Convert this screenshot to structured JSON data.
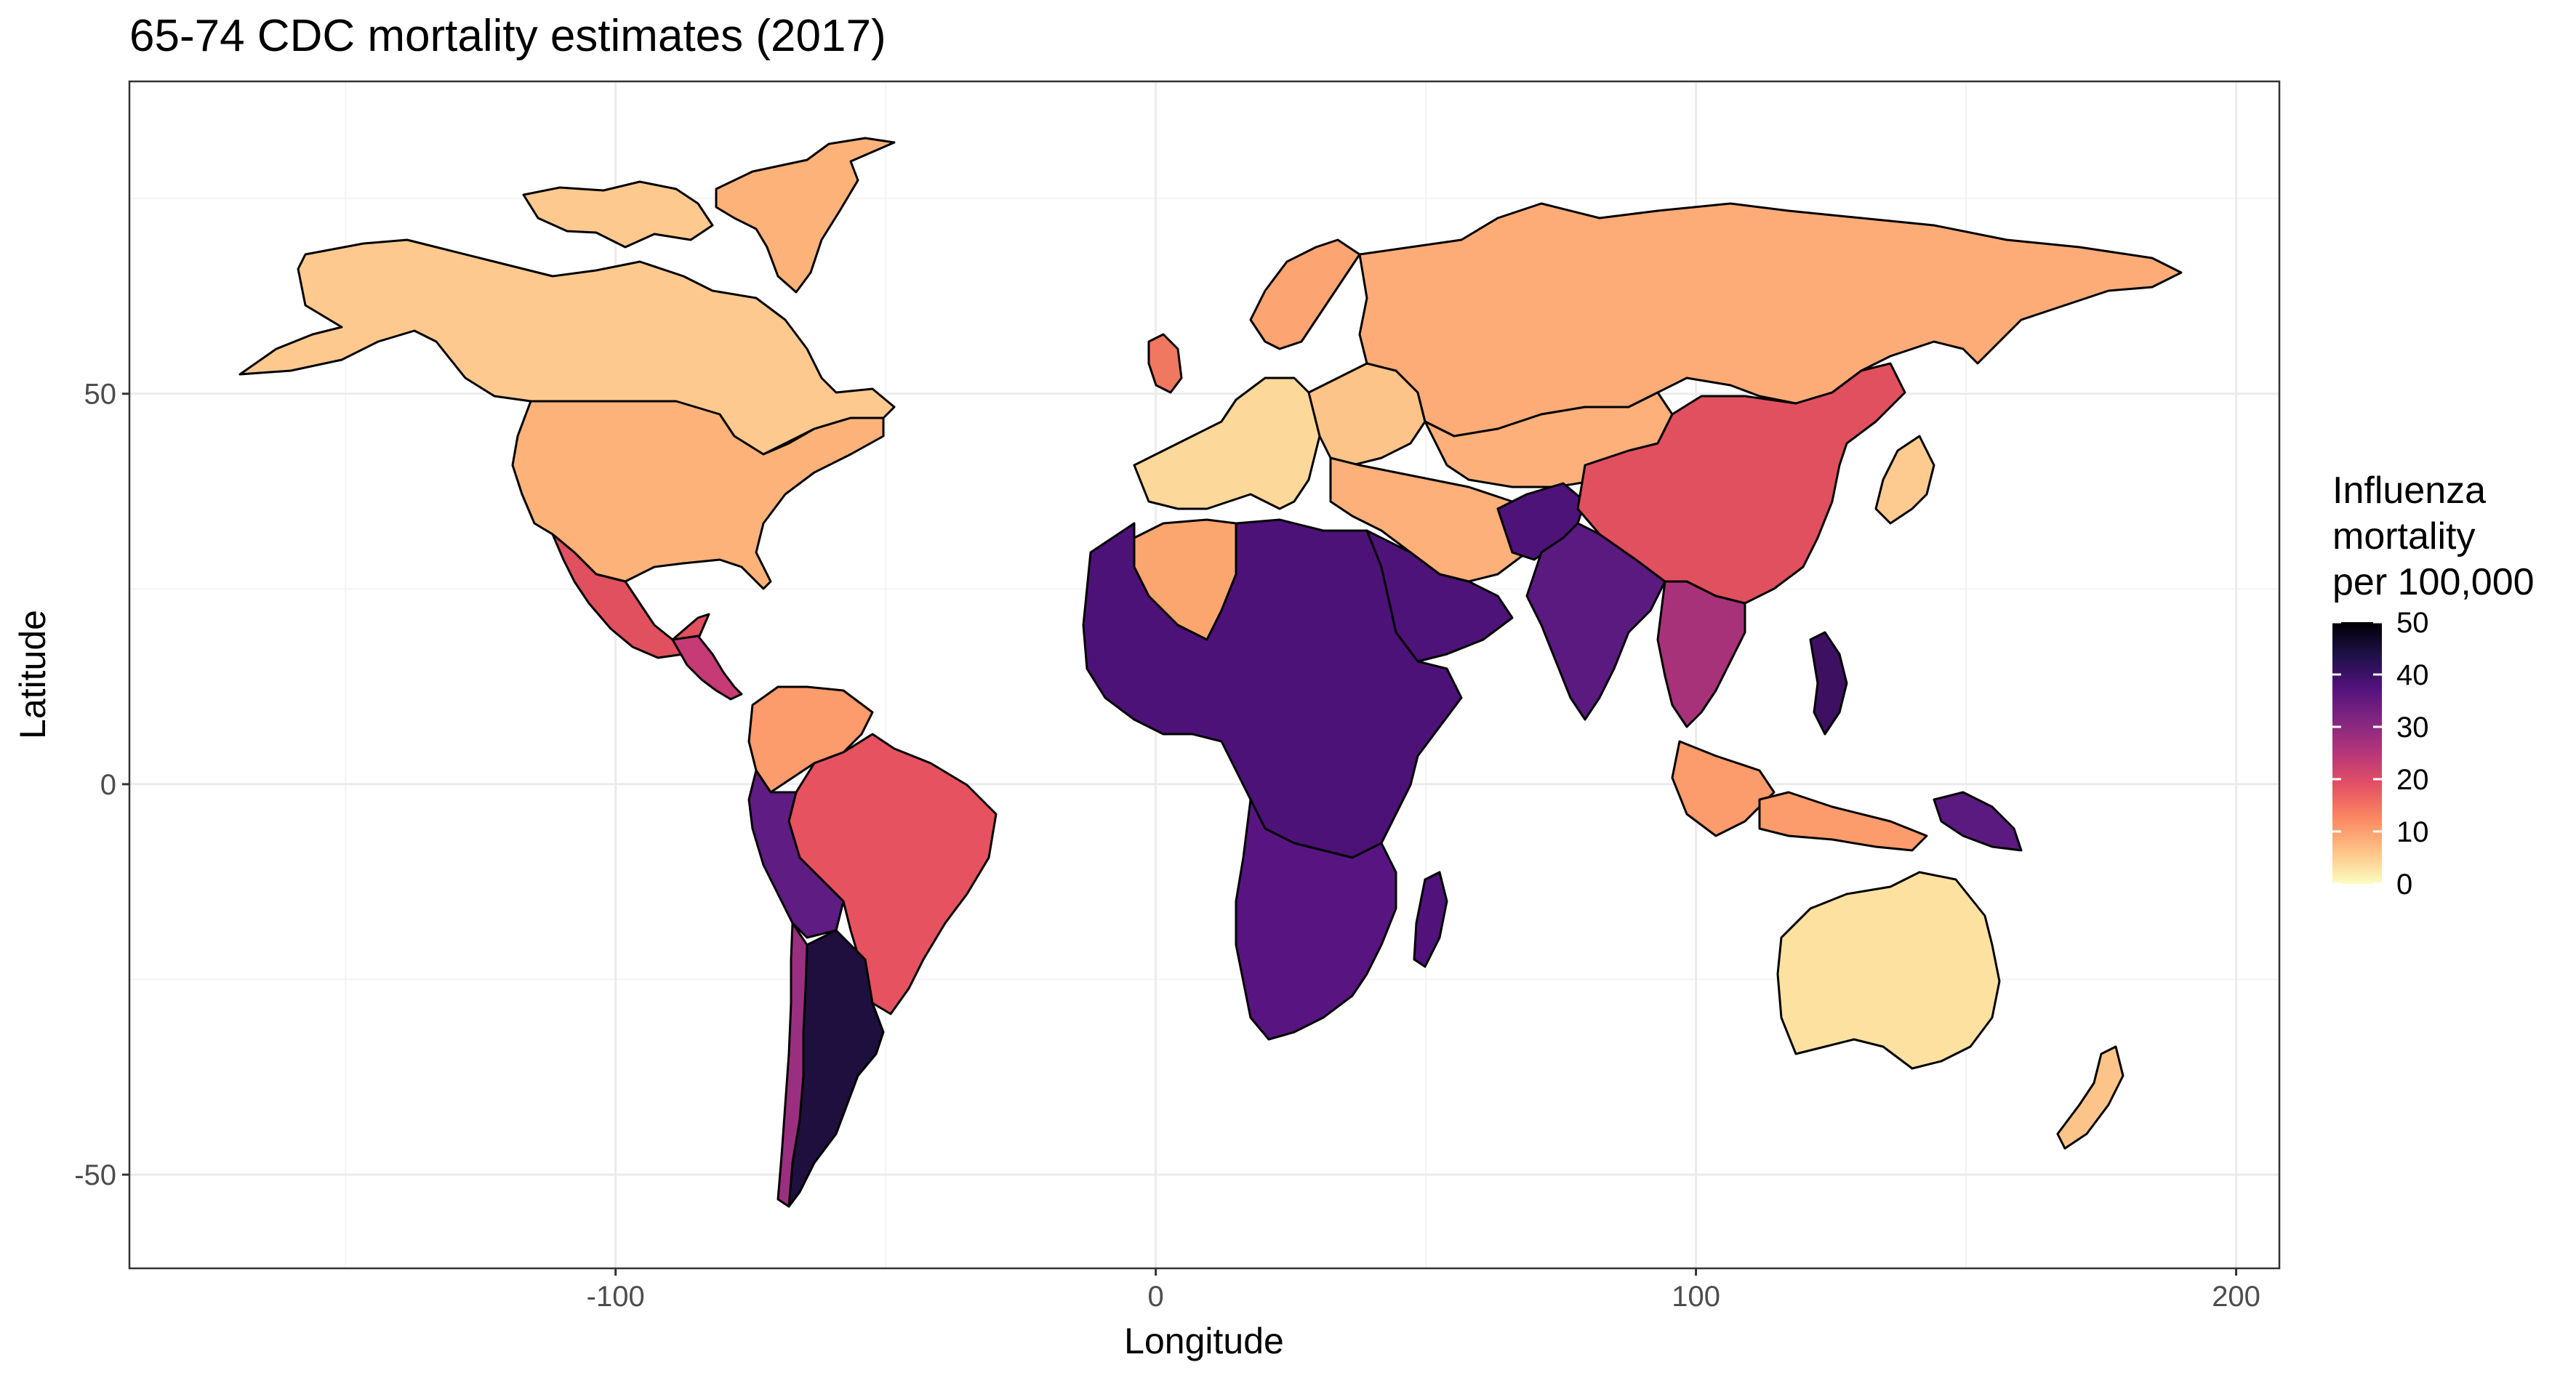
{
  "title": "65-74 CDC mortality estimates (2017)",
  "x_axis": {
    "title": "Longitude",
    "ticks": [
      "-100",
      "0",
      "100",
      "200"
    ],
    "tick_values": [
      -100,
      0,
      100,
      200
    ]
  },
  "y_axis": {
    "title": "Latitude",
    "ticks": [
      "-50",
      "0",
      "50"
    ],
    "tick_values": [
      -50,
      0,
      50
    ]
  },
  "legend": {
    "title_lines": [
      "Influenza",
      "mortality",
      "per 100,000"
    ],
    "labels": [
      "50",
      "40",
      "30",
      "20",
      "10",
      "0"
    ],
    "values": [
      50,
      40,
      30,
      20,
      10,
      0
    ],
    "colormap": "magma (reversed)",
    "gradient_colors": [
      "#000004",
      "#1d1147",
      "#51127c",
      "#822681",
      "#b63679",
      "#e65164",
      "#fb8861",
      "#fec287",
      "#fcfdbf"
    ]
  },
  "chart_data": {
    "type": "choropleth",
    "title": "65-74 CDC mortality estimates (2017)",
    "xlabel": "Longitude",
    "ylabel": "Latitude",
    "xlim": [
      -190,
      208
    ],
    "ylim": [
      -62,
      90
    ],
    "grid": true,
    "legend_position": "right",
    "value_label": "Influenza mortality per 100,000",
    "regions": [
      {
        "name": "Canada",
        "value": 5
      },
      {
        "name": "United States",
        "value": 9
      },
      {
        "name": "Mexico",
        "value": 22
      },
      {
        "name": "Central America",
        "value": 25
      },
      {
        "name": "Colombia / Venezuela",
        "value": 11
      },
      {
        "name": "Brazil",
        "value": 20
      },
      {
        "name": "Peru / Bolivia",
        "value": 33
      },
      {
        "name": "Argentina",
        "value": 47
      },
      {
        "name": "Chile",
        "value": 28
      },
      {
        "name": "Greenland",
        "value": 8
      },
      {
        "name": "Western Europe",
        "value": 7
      },
      {
        "name": "Eastern Europe",
        "value": 9
      },
      {
        "name": "Russia",
        "value": 10
      },
      {
        "name": "Central Asia",
        "value": 8
      },
      {
        "name": "Middle East",
        "value": 8
      },
      {
        "name": "Arabian Peninsula",
        "value": 34
      },
      {
        "name": "Algeria",
        "value": 9
      },
      {
        "name": "Sub-Saharan Africa",
        "value": 35
      },
      {
        "name": "Southern Africa",
        "value": 33
      },
      {
        "name": "Madagascar",
        "value": 34
      },
      {
        "name": "Afghanistan / Pakistan",
        "value": 34
      },
      {
        "name": "India",
        "value": 32
      },
      {
        "name": "China",
        "value": 20
      },
      {
        "name": "Southeast Asia",
        "value": 26
      },
      {
        "name": "Indonesia",
        "value": 11
      },
      {
        "name": "Philippines",
        "value": 35
      },
      {
        "name": "Japan / Korea",
        "value": 6
      },
      {
        "name": "Papua New Guinea",
        "value": 33
      },
      {
        "name": "Australia",
        "value": 4
      },
      {
        "name": "New Zealand",
        "value": 6
      }
    ]
  }
}
